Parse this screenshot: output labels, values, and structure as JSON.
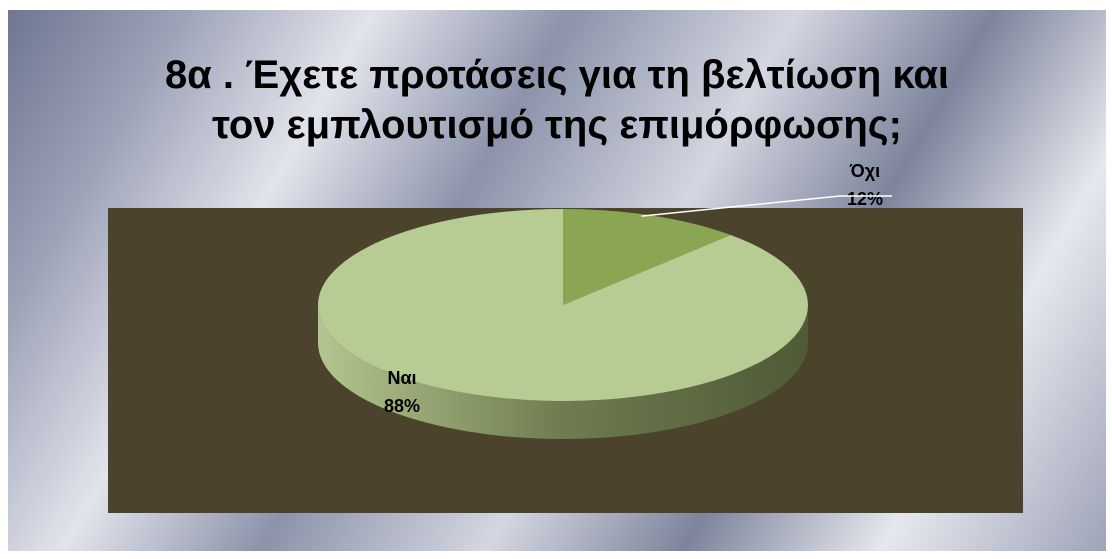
{
  "title_lines": [
    "8α . Έχετε προτάσεις για τη βελτίωση και",
    "τον εμπλουτισμό της επιμόρφωσης;"
  ],
  "colors": {
    "plot_background": "#4c432c",
    "slice_large": "#b7cc92",
    "slice_small": "#8aa653",
    "label_text": "#000000",
    "leader_line": "#ffffff"
  },
  "chart_data": {
    "type": "pie",
    "style": "3d",
    "title": "8α . Έχετε προτάσεις για τη βελτίωση και τον εμπλουτισμό της επιμόρφωσης;",
    "categories": [
      "Ναι",
      "Όχι"
    ],
    "values": [
      88,
      12
    ],
    "labels": [
      {
        "category": "Ναι",
        "percent": "88%"
      },
      {
        "category": "Όχι",
        "percent": "12%"
      }
    ],
    "legend": "none"
  }
}
